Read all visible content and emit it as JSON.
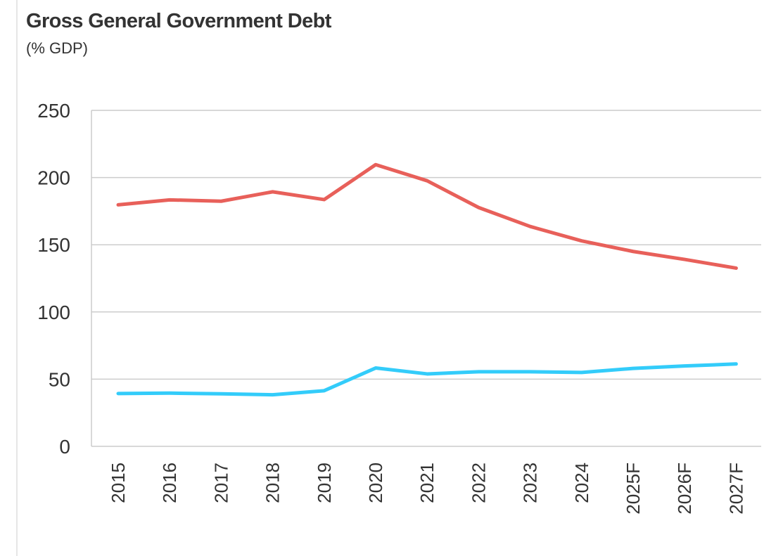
{
  "title": "Gross General Government Debt",
  "subtitle": "(% GDP)",
  "chart_data": {
    "type": "line",
    "title": "Gross General Government Debt",
    "subtitle": "(% GDP)",
    "xlabel": "",
    "ylabel": "",
    "categories": [
      "2015",
      "2016",
      "2017",
      "2018",
      "2019",
      "2020",
      "2021",
      "2022",
      "2023",
      "2024",
      "2025F",
      "2026F",
      "2027F"
    ],
    "ylim": [
      0,
      250
    ],
    "yticks": [
      0,
      50,
      100,
      150,
      200,
      250
    ],
    "ytick_labels": [
      "0",
      "50",
      "100",
      "150",
      "200",
      "250"
    ],
    "grid": true,
    "legend": "none",
    "series": [
      {
        "name": "",
        "color": "#E8605A",
        "values": [
          179.7,
          183.4,
          182.4,
          189.4,
          183.6,
          209.6,
          197.6,
          177.7,
          163.6,
          152.9,
          145.0,
          139.1,
          132.6
        ]
      },
      {
        "name": "",
        "color": "#33CCFA",
        "values": [
          39.3,
          39.6,
          39.1,
          38.4,
          41.4,
          58.3,
          53.9,
          55.5,
          55.5,
          55.0,
          58.0,
          59.8,
          61.3
        ]
      }
    ]
  }
}
